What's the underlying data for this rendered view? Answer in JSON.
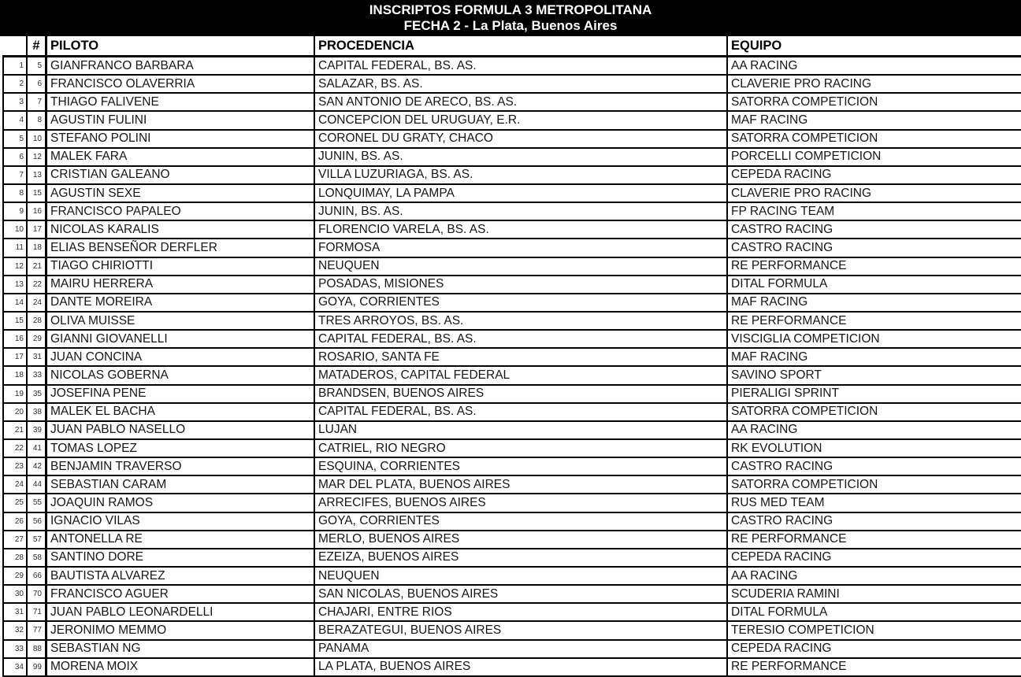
{
  "title": {
    "line1": "INSCRIPTOS FORMULA 3 METROPOLITANA",
    "line2": "FECHA 2 - La Plata, Buenos Aires"
  },
  "colors": {
    "band_background": "#000000",
    "band_text": "#ffffff",
    "border": "#000000",
    "body_text": "#161616"
  },
  "table": {
    "headers": {
      "index": "",
      "number": "#",
      "pilot": "PILOTO",
      "origin": "PROCEDENCIA",
      "team": "EQUIPO"
    },
    "rows": [
      {
        "index": "1",
        "number": "5",
        "pilot": "GIANFRANCO BARBARA",
        "origin": "CAPITAL FEDERAL, BS. AS.",
        "team": "AA RACING"
      },
      {
        "index": "2",
        "number": "6",
        "pilot": "FRANCISCO OLAVERRIA",
        "origin": "SALAZAR, BS. AS.",
        "team": "CLAVERIE PRO RACING"
      },
      {
        "index": "3",
        "number": "7",
        "pilot": "THIAGO FALIVENE",
        "origin": "SAN ANTONIO DE ARECO, BS. AS.",
        "team": "SATORRA COMPETICION"
      },
      {
        "index": "4",
        "number": "8",
        "pilot": "AGUSTIN FULINI",
        "origin": "CONCEPCION DEL URUGUAY, E.R.",
        "team": "MAF RACING"
      },
      {
        "index": "5",
        "number": "10",
        "pilot": "STEFANO POLINI",
        "origin": "CORONEL DU GRATY, CHACO",
        "team": "SATORRA COMPETICION"
      },
      {
        "index": "6",
        "number": "12",
        "pilot": "MALEK FARA",
        "origin": "JUNIN, BS. AS.",
        "team": "PORCELLI COMPETICION"
      },
      {
        "index": "7",
        "number": "13",
        "pilot": "CRISTIAN GALEANO",
        "origin": "VILLA LUZURIAGA, BS. AS.",
        "team": "CEPEDA RACING"
      },
      {
        "index": "8",
        "number": "15",
        "pilot": "AGUSTIN SEXE",
        "origin": "LONQUIMAY, LA PAMPA",
        "team": "CLAVERIE PRO RACING"
      },
      {
        "index": "9",
        "number": "16",
        "pilot": "FRANCISCO PAPALEO",
        "origin": "JUNIN, BS. AS.",
        "team": "FP RACING TEAM"
      },
      {
        "index": "10",
        "number": "17",
        "pilot": "NICOLAS KARALIS",
        "origin": "FLORENCIO VARELA, BS. AS.",
        "team": "CASTRO RACING"
      },
      {
        "index": "11",
        "number": "18",
        "pilot": "ELIAS BENSEÑOR DERFLER",
        "origin": "FORMOSA",
        "team": "CASTRO RACING"
      },
      {
        "index": "12",
        "number": "21",
        "pilot": "TIAGO CHIRIOTTI",
        "origin": "NEUQUEN",
        "team": "RE PERFORMANCE"
      },
      {
        "index": "13",
        "number": "22",
        "pilot": "MAIRU HERRERA",
        "origin": "POSADAS, MISIONES",
        "team": "DITAL FORMULA"
      },
      {
        "index": "14",
        "number": "24",
        "pilot": "DANTE MOREIRA",
        "origin": "GOYA, CORRIENTES",
        "team": "MAF RACING"
      },
      {
        "index": "15",
        "number": "28",
        "pilot": "OLIVA MUISSE",
        "origin": "TRES ARROYOS, BS. AS.",
        "team": "RE PERFORMANCE"
      },
      {
        "index": "16",
        "number": "29",
        "pilot": "GIANNI GIOVANELLI",
        "origin": "CAPITAL FEDERAL, BS. AS.",
        "team": "VISCIGLIA COMPETICION"
      },
      {
        "index": "17",
        "number": "31",
        "pilot": "JUAN CONCINA",
        "origin": "ROSARIO, SANTA FE",
        "team": "MAF RACING"
      },
      {
        "index": "18",
        "number": "33",
        "pilot": "NICOLAS GOBERNA",
        "origin": "MATADEROS, CAPITAL FEDERAL",
        "team": "SAVINO SPORT"
      },
      {
        "index": "19",
        "number": "35",
        "pilot": "JOSEFINA PENE",
        "origin": "BRANDSEN, BUENOS AIRES",
        "team": "PIERALIGI SPRINT"
      },
      {
        "index": "20",
        "number": "38",
        "pilot": "MALEK EL BACHA",
        "origin": "CAPITAL FEDERAL, BS. AS.",
        "team": "SATORRA COMPETICION"
      },
      {
        "index": "21",
        "number": "39",
        "pilot": "JUAN PABLO NASELLO",
        "origin": "LUJAN",
        "team": "AA RACING"
      },
      {
        "index": "22",
        "number": "41",
        "pilot": "TOMAS LOPEZ",
        "origin": "CATRIEL, RIO NEGRO",
        "team": "RK EVOLUTION"
      },
      {
        "index": "23",
        "number": "42",
        "pilot": "BENJAMIN TRAVERSO",
        "origin": "ESQUINA, CORRIENTES",
        "team": "CASTRO RACING"
      },
      {
        "index": "24",
        "number": "44",
        "pilot": "SEBASTIAN CARAM",
        "origin": "MAR DEL PLATA, BUENOS AIRES",
        "team": "SATORRA COMPETICION"
      },
      {
        "index": "25",
        "number": "55",
        "pilot": "JOAQUIN RAMOS",
        "origin": "ARRECIFES, BUENOS AIRES",
        "team": "RUS MED TEAM"
      },
      {
        "index": "26",
        "number": "56",
        "pilot": "IGNACIO VILAS",
        "origin": "GOYA, CORRIENTES",
        "team": "CASTRO RACING"
      },
      {
        "index": "27",
        "number": "57",
        "pilot": "ANTONELLA RE",
        "origin": "MERLO, BUENOS AIRES",
        "team": "RE PERFORMANCE"
      },
      {
        "index": "28",
        "number": "58",
        "pilot": "SANTINO DORE",
        "origin": "EZEIZA, BUENOS AIRES",
        "team": "CEPEDA RACING"
      },
      {
        "index": "29",
        "number": "66",
        "pilot": "BAUTISTA ALVAREZ",
        "origin": "NEUQUEN",
        "team": "AA RACING"
      },
      {
        "index": "30",
        "number": "70",
        "pilot": "FRANCISCO AGUER",
        "origin": "SAN NICOLAS, BUENOS AIRES",
        "team": "SCUDERIA RAMINI"
      },
      {
        "index": "31",
        "number": "71",
        "pilot": "JUAN PABLO LEONARDELLI",
        "origin": "CHAJARI, ENTRE RIOS",
        "team": "DITAL FORMULA"
      },
      {
        "index": "32",
        "number": "77",
        "pilot": "JERONIMO MEMMO",
        "origin": "BERAZATEGUI, BUENOS AIRES",
        "team": "TERESIO COMPETICION"
      },
      {
        "index": "33",
        "number": "88",
        "pilot": "SEBASTIAN NG",
        "origin": "PANAMA",
        "team": "CEPEDA RACING"
      },
      {
        "index": "34",
        "number": "99",
        "pilot": "MORENA MOIX",
        "origin": "LA PLATA, BUENOS AIRES",
        "team": "RE PERFORMANCE"
      }
    ]
  }
}
